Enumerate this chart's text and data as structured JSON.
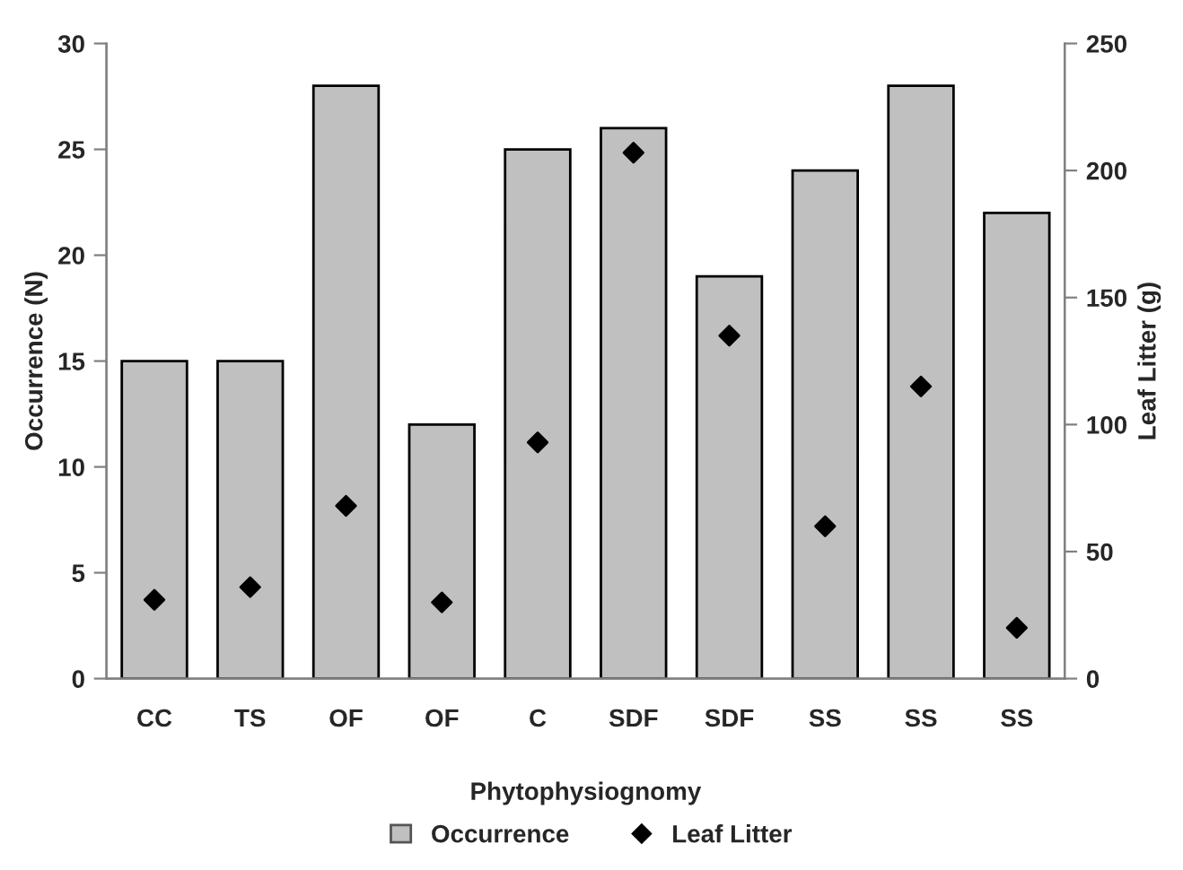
{
  "chart_data": {
    "type": "bar",
    "xlabel": "Phytophysiognomy",
    "ylabel": "Occurrence (N)",
    "y2label": "Leaf Litter (g)",
    "categories": [
      "CC",
      "TS",
      "OF",
      "OF",
      "C",
      "SDF",
      "SDF",
      "SS",
      "SS",
      "SS"
    ],
    "series": [
      {
        "name": "Occurrence",
        "color": "#c0c0c0",
        "values": [
          15,
          15,
          28,
          12,
          25,
          26,
          19,
          24,
          28,
          22
        ]
      },
      {
        "name": "Leaf Litter",
        "type": "scatter",
        "axis": "y2",
        "marker": "diamond",
        "color": "#000000",
        "values": [
          31,
          36,
          68,
          30,
          93,
          207,
          135,
          60,
          115,
          20
        ]
      }
    ],
    "ylim": [
      0,
      30
    ],
    "yticks": [
      0,
      5,
      10,
      15,
      20,
      25,
      30
    ],
    "y2lim": [
      0,
      250
    ],
    "y2ticks": [
      0,
      50,
      100,
      150,
      200,
      250
    ],
    "grid": false,
    "legend": "bottom"
  }
}
